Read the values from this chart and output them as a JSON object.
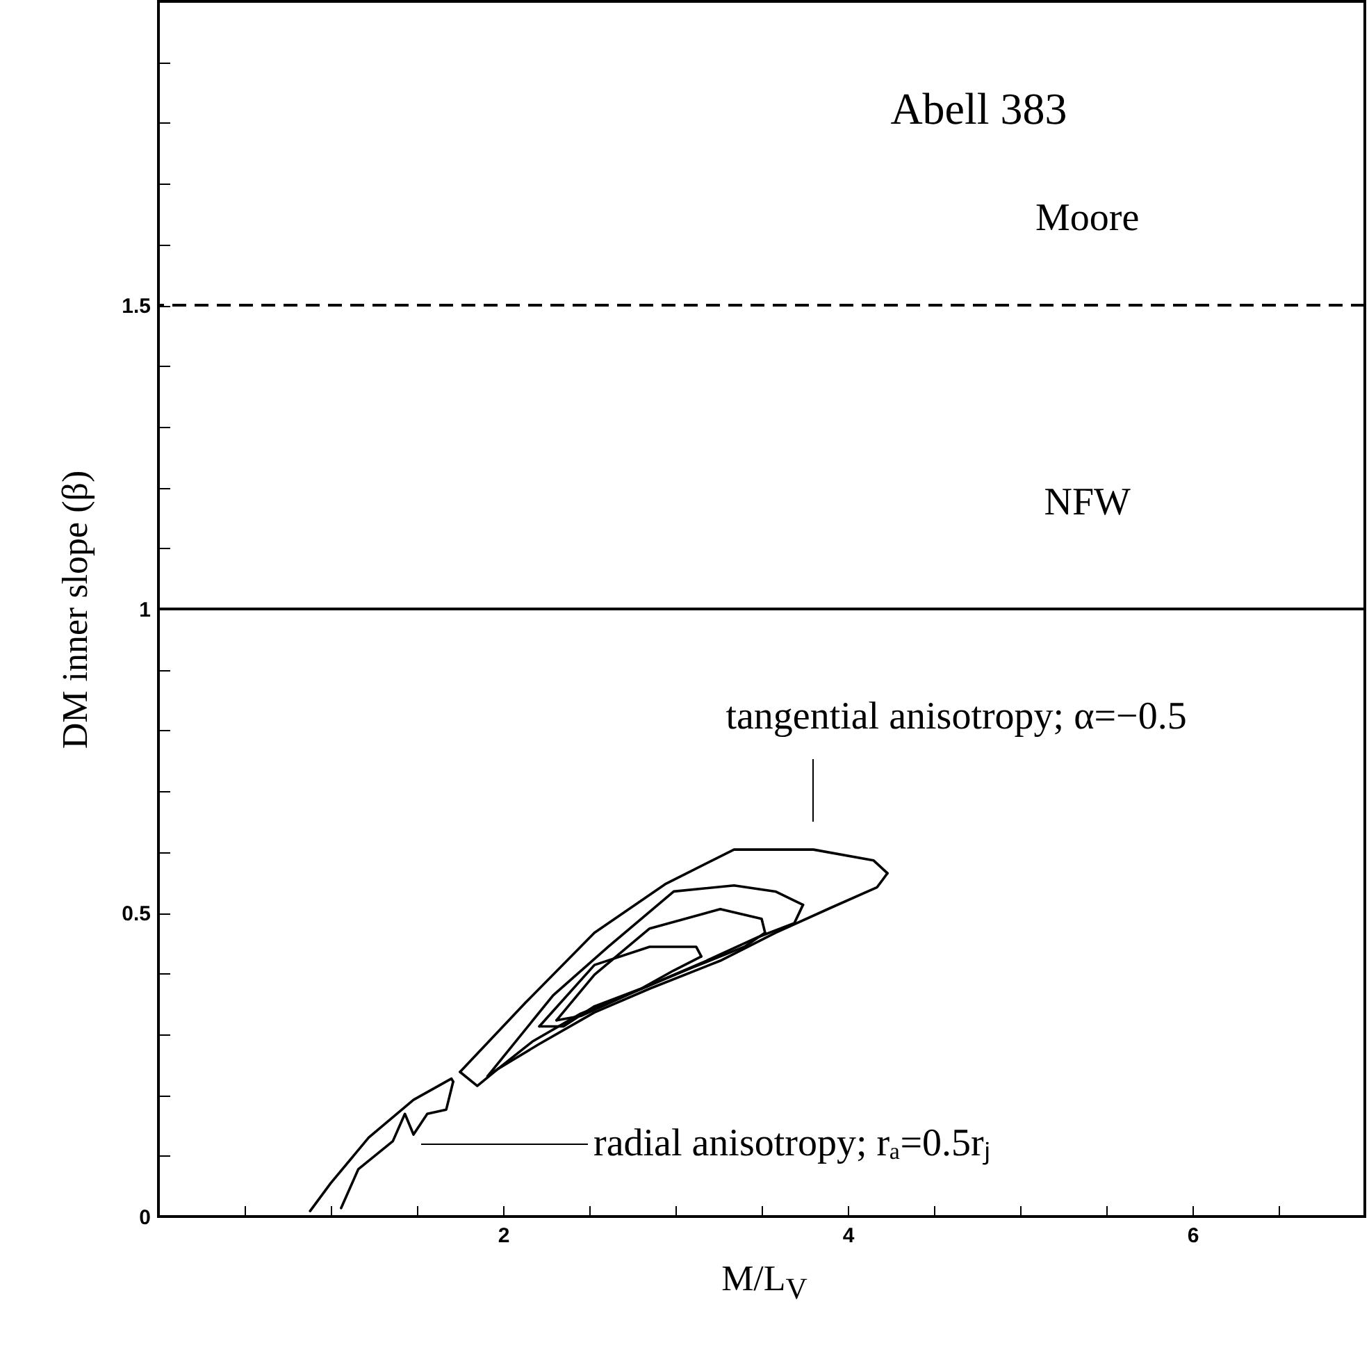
{
  "chart_data": {
    "type": "line",
    "title": "Abell 383",
    "xlabel": "M/L$_{V}$",
    "ylabel": "DM inner slope (β)",
    "xlim": [
      0,
      7
    ],
    "ylim": [
      0,
      2
    ],
    "xticks": [
      {
        "value": 0.5,
        "label": null
      },
      {
        "value": 1,
        "label": null
      },
      {
        "value": 1.5,
        "label": null
      },
      2,
      {
        "value": 2.5,
        "label": null
      },
      {
        "value": 3,
        "label": null
      },
      {
        "value": 3.5,
        "label": null
      },
      4,
      {
        "value": 4.5,
        "label": null
      },
      {
        "value": 5,
        "label": null
      },
      {
        "value": 5.5,
        "label": null
      },
      6,
      {
        "value": 6.5,
        "label": null
      }
    ],
    "yticks": [
      0,
      {
        "value": 0.1,
        "label": null
      },
      {
        "value": 0.2,
        "label": null
      },
      {
        "value": 0.3,
        "label": null
      },
      {
        "value": 0.4,
        "label": null
      },
      0.5,
      {
        "value": 0.6,
        "label": null
      },
      {
        "value": 0.7,
        "label": null
      },
      {
        "value": 0.8,
        "label": null
      },
      {
        "value": 0.9,
        "label": null
      },
      1,
      {
        "value": 1.1,
        "label": null
      },
      {
        "value": 1.2,
        "label": null
      },
      {
        "value": 1.3,
        "label": null
      },
      {
        "value": 1.4,
        "label": null
      },
      1.5,
      {
        "value": 1.6,
        "label": null
      },
      {
        "value": 1.7,
        "label": null
      },
      {
        "value": 1.8,
        "label": null
      },
      {
        "value": 1.9,
        "label": null
      }
    ],
    "grid": false,
    "line_style": "solid",
    "series": [
      {
        "color": "#000000",
        "x": [
          1.75,
          2.13,
          2.53,
          2.94,
          3.34,
          3.8,
          4.15,
          4.23
        ],
        "values": [
          0.238,
          0.352,
          0.467,
          0.547,
          0.604,
          0.604,
          0.586,
          0.565
        ]
      },
      {
        "color": "#000000",
        "x": [
          1.75,
          1.85,
          1.97,
          2.21,
          2.53,
          2.85,
          3.26,
          3.58,
          3.9,
          4.17,
          4.23
        ],
        "values": [
          0.238,
          0.215,
          0.243,
          0.284,
          0.336,
          0.375,
          0.421,
          0.467,
          0.508,
          0.542,
          0.565
        ]
      },
      {
        "color": "#000000",
        "x": [
          1.91,
          2.29,
          2.61,
          2.99,
          3.34,
          3.58,
          3.74
        ],
        "values": [
          0.231,
          0.364,
          0.444,
          0.535,
          0.545,
          0.535,
          0.513
        ]
      },
      {
        "color": "#000000",
        "x": [
          1.91,
          1.97,
          2.17,
          2.45,
          2.77,
          3.18,
          3.48,
          3.69,
          3.74
        ],
        "values": [
          0.231,
          0.243,
          0.288,
          0.334,
          0.371,
          0.421,
          0.46,
          0.483,
          0.513
        ]
      },
      {
        "color": "#000000",
        "x": [
          2.31,
          2.53,
          2.85,
          3.26,
          3.5,
          3.52
        ],
        "values": [
          0.323,
          0.398,
          0.474,
          0.506,
          0.49,
          0.467
        ]
      },
      {
        "color": "#000000",
        "x": [
          2.31,
          2.45,
          2.77,
          3.1,
          3.4,
          3.52
        ],
        "values": [
          0.323,
          0.33,
          0.371,
          0.41,
          0.444,
          0.467
        ]
      },
      {
        "color": "#000000",
        "x": [
          2.21,
          2.53,
          2.85,
          3.12,
          3.15
        ],
        "values": [
          0.313,
          0.414,
          0.444,
          0.444,
          0.428
        ]
      },
      {
        "color": "#000000",
        "x": [
          2.21,
          2.35,
          2.53,
          2.8,
          2.99,
          3.15
        ],
        "values": [
          0.313,
          0.313,
          0.346,
          0.375,
          0.405,
          0.428
        ]
      },
      {
        "color": "#000000",
        "x": [
          0.88,
          1.0,
          1.22,
          1.48,
          1.7,
          1.71
        ],
        "values": [
          0.009,
          0.055,
          0.13,
          0.192,
          0.227,
          0.222
        ]
      },
      {
        "color": "#000000",
        "x": [
          1.06,
          1.16,
          1.36,
          1.43,
          1.48,
          1.56,
          1.67,
          1.71
        ],
        "values": [
          0.014,
          0.078,
          0.124,
          0.169,
          0.135,
          0.169,
          0.176,
          0.222
        ]
      }
    ],
    "ref_lines": [
      {
        "axis": "y",
        "value": 1.5,
        "label": "Moore",
        "line_style": "dashed",
        "color": "#000000"
      },
      {
        "axis": "y",
        "value": 1,
        "label": "NFW",
        "line_style": "solid",
        "color": "#000000"
      }
    ],
    "annotations": [
      "tangential anisotropy; α=−0.5",
      "radial anisotropy; rₐ=0.5rⱼ"
    ]
  }
}
